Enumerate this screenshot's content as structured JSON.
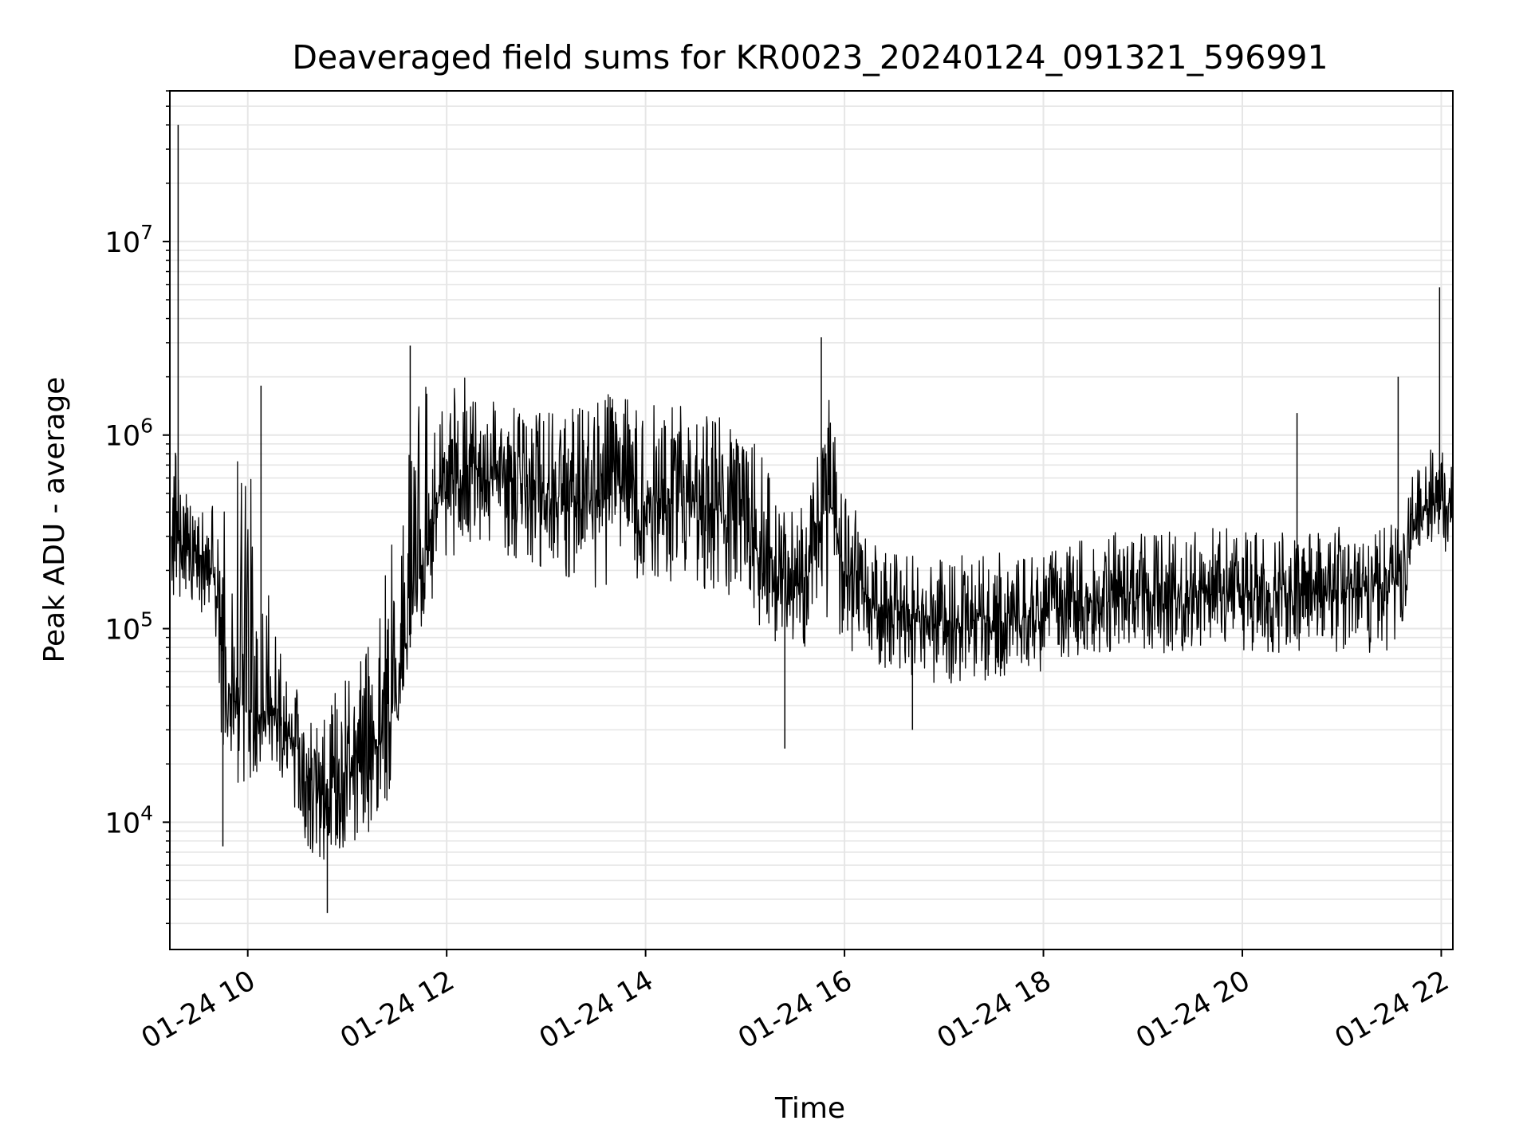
{
  "chart_data": {
    "type": "line",
    "title": "Deaveraged field sums for KR0023_20240124_091321_596991",
    "xlabel": "Time",
    "ylabel": "Peak ADU - average",
    "x_tick_labels": [
      "01-24 10",
      "01-24 12",
      "01-24 14",
      "01-24 16",
      "01-24 18",
      "01-24 20",
      "01-24 22"
    ],
    "y_scale": "log",
    "y_tick_labels": [
      {
        "base": "10",
        "exp": "4"
      },
      {
        "base": "10",
        "exp": "5"
      },
      {
        "base": "10",
        "exp": "6"
      },
      {
        "base": "10",
        "exp": "7"
      }
    ],
    "xlim": [
      "2024-01-24 09:13",
      "2024-01-24 22:07"
    ],
    "ylim": [
      2200,
      60000000
    ],
    "grid": true,
    "line_color": "#000000",
    "grid_color": "#e6e6e6",
    "series": [
      {
        "x": [
          "2024-01-24 09:14",
          "2024-01-24 09:20",
          "2024-01-24 09:30",
          "2024-01-24 09:40",
          "2024-01-24 09:45",
          "2024-01-24 09:55",
          "2024-01-24 10:05",
          "2024-01-24 10:15",
          "2024-01-24 10:25",
          "2024-01-24 10:35",
          "2024-01-24 10:45",
          "2024-01-24 10:55",
          "2024-01-24 11:05",
          "2024-01-24 11:15",
          "2024-01-24 11:25",
          "2024-01-24 11:35",
          "2024-01-24 11:45",
          "2024-01-24 11:55",
          "2024-01-24 12:10",
          "2024-01-24 12:30",
          "2024-01-24 12:50",
          "2024-01-24 13:10",
          "2024-01-24 13:30",
          "2024-01-24 13:50",
          "2024-01-24 14:10",
          "2024-01-24 14:30",
          "2024-01-24 14:50",
          "2024-01-24 15:10",
          "2024-01-24 15:25",
          "2024-01-24 15:40",
          "2024-01-24 15:50",
          "2024-01-24 16:00",
          "2024-01-24 16:20",
          "2024-01-24 16:40",
          "2024-01-24 17:00",
          "2024-01-24 17:20",
          "2024-01-24 17:40",
          "2024-01-24 18:00",
          "2024-01-24 18:20",
          "2024-01-24 18:40",
          "2024-01-24 19:00",
          "2024-01-24 19:20",
          "2024-01-24 19:40",
          "2024-01-24 20:00",
          "2024-01-24 20:20",
          "2024-01-24 20:40",
          "2024-01-24 21:00",
          "2024-01-24 21:20",
          "2024-01-24 21:35",
          "2024-01-24 21:45",
          "2024-01-24 21:55",
          "2024-01-24 22:05"
        ],
        "y": [
          300000,
          280000,
          250000,
          180000,
          60000,
          40000,
          35000,
          40000,
          30000,
          18000,
          15000,
          14000,
          20000,
          22000,
          30000,
          80000,
          200000,
          450000,
          700000,
          650000,
          550000,
          450000,
          450000,
          500000,
          450000,
          450000,
          400000,
          250000,
          150000,
          200000,
          500000,
          200000,
          130000,
          120000,
          110000,
          110000,
          110000,
          120000,
          135000,
          145000,
          150000,
          150000,
          155000,
          150000,
          150000,
          155000,
          160000,
          165000,
          170000,
          350000,
          450000,
          450000
        ],
        "envelope_high": [
          1100000,
          600000,
          400000,
          500000,
          400000,
          1500000,
          400000,
          200000,
          80000,
          30000,
          40000,
          50000,
          60000,
          90000,
          250000,
          900000,
          1800000,
          2000000,
          2000000,
          1500000,
          1300000,
          1300000,
          1800000,
          1600000,
          1500000,
          1500000,
          1200000,
          900000,
          400000,
          500000,
          1800000,
          500000,
          280000,
          250000,
          230000,
          250000,
          250000,
          250000,
          300000,
          320000,
          320000,
          330000,
          330000,
          330000,
          320000,
          330000,
          340000,
          340000,
          350000,
          800000,
          900000,
          800000
        ],
        "envelope_low": [
          100000,
          150000,
          120000,
          80000,
          20000,
          12000,
          15000,
          20000,
          15000,
          7000,
          6000,
          6000,
          8000,
          9000,
          13000,
          50000,
          80000,
          200000,
          250000,
          250000,
          220000,
          180000,
          160000,
          180000,
          170000,
          160000,
          150000,
          100000,
          70000,
          70000,
          100000,
          80000,
          60000,
          55000,
          50000,
          50000,
          55000,
          60000,
          70000,
          75000,
          75000,
          75000,
          75000,
          75000,
          75000,
          75000,
          75000,
          75000,
          80000,
          250000,
          250000,
          250000
        ]
      }
    ],
    "spikes": [
      {
        "x": "2024-01-24 09:18",
        "y": 40000000
      },
      {
        "x": "2024-01-24 09:45",
        "y": 7500
      },
      {
        "x": "2024-01-24 10:08",
        "y": 1800000
      },
      {
        "x": "2024-01-24 10:48",
        "y": 3400
      },
      {
        "x": "2024-01-24 11:38",
        "y": 2900000
      },
      {
        "x": "2024-01-24 15:24",
        "y": 24000
      },
      {
        "x": "2024-01-24 15:46",
        "y": 3200000
      },
      {
        "x": "2024-01-24 16:41",
        "y": 30000
      },
      {
        "x": "2024-01-24 20:33",
        "y": 1300000
      },
      {
        "x": "2024-01-24 21:34",
        "y": 2000000
      },
      {
        "x": "2024-01-24 21:59",
        "y": 5800000
      }
    ]
  }
}
